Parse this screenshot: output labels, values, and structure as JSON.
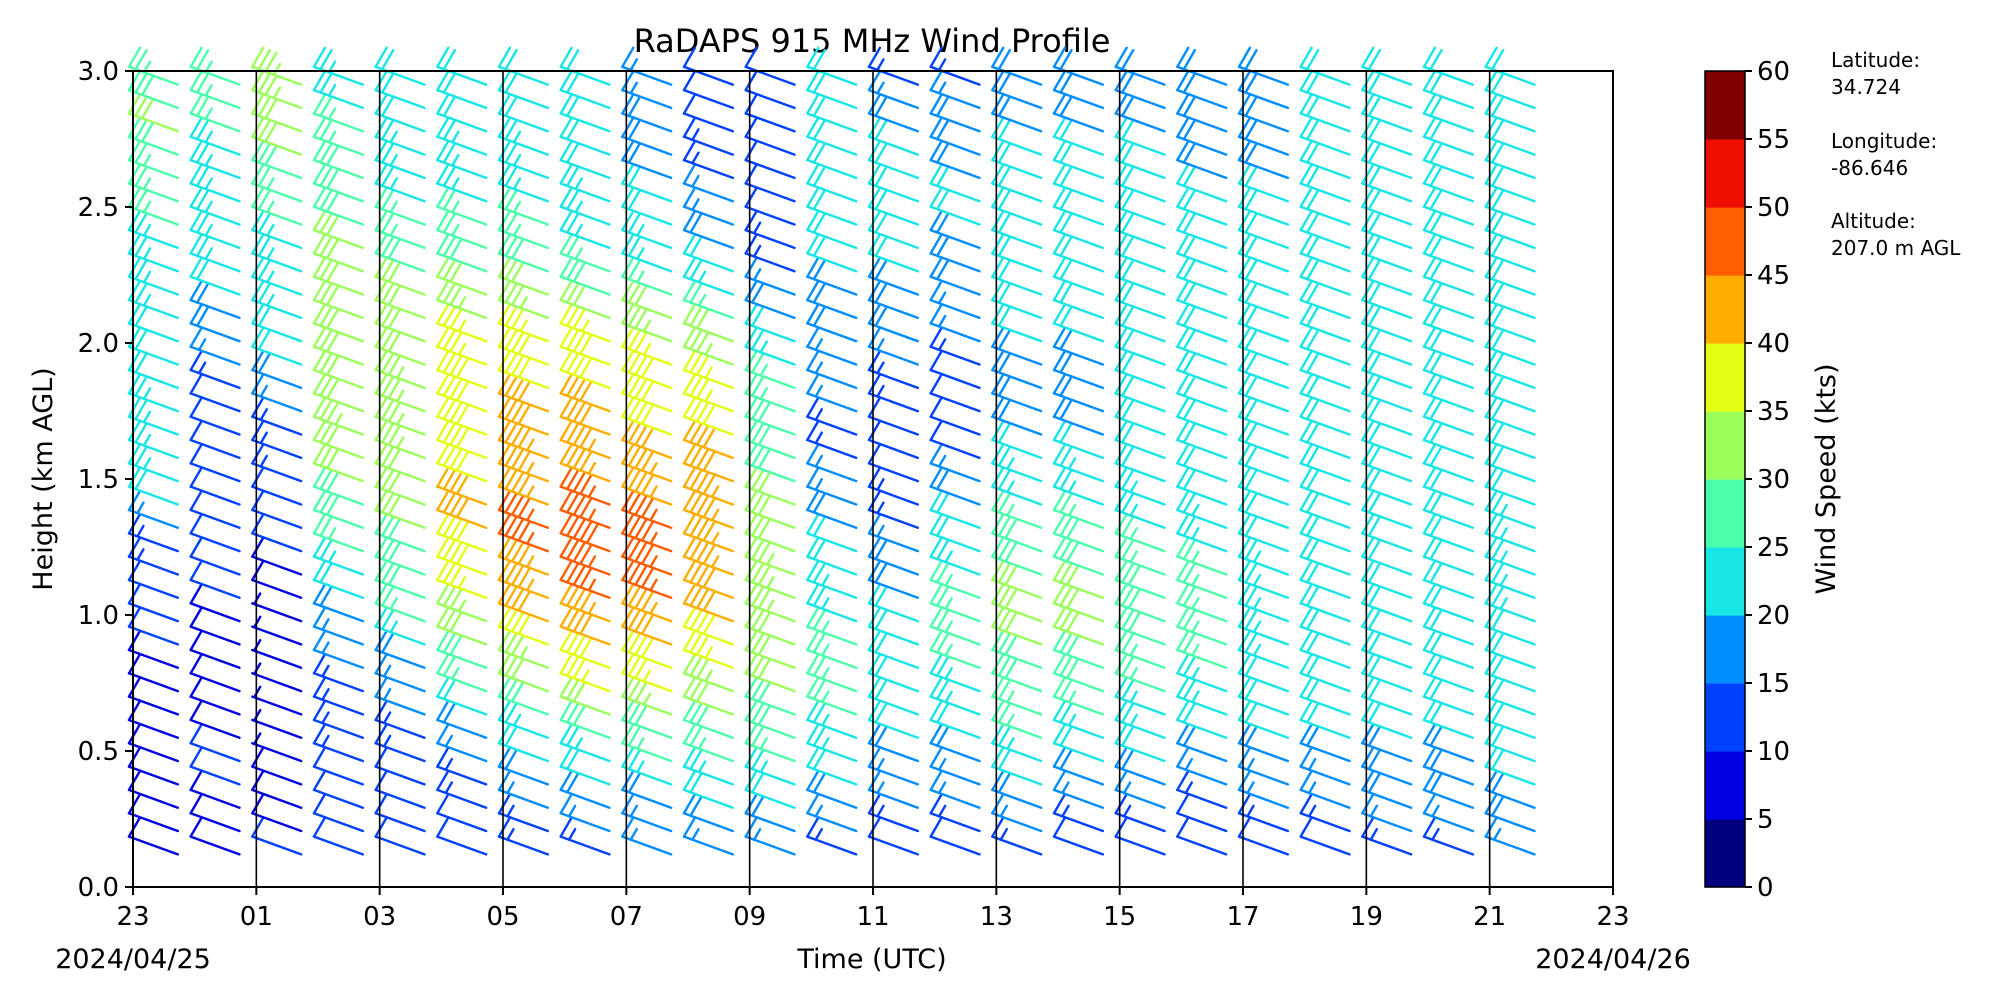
{
  "chart_data": {
    "type": "wind_barbs",
    "title": "RaDAPS 915 MHz Wind Profile",
    "xlabel": "Time (UTC)",
    "ylabel": "Height (km AGL)",
    "x_tick_labels": [
      "23",
      "01",
      "03",
      "05",
      "07",
      "09",
      "11",
      "13",
      "15",
      "17",
      "19",
      "21",
      "23"
    ],
    "x_range_hours": [
      0,
      24
    ],
    "start_date": "2024/04/25",
    "end_date": "2024/04/26",
    "y_ticks": [
      "0.0",
      "0.5",
      "1.0",
      "1.5",
      "2.0",
      "2.5",
      "3.0"
    ],
    "ylim": [
      0,
      3
    ],
    "grid": "vertical lines every 2 hours",
    "colorbar": {
      "label": "Wind Speed (kts)",
      "ticks": [
        "0",
        "5",
        "10",
        "15",
        "20",
        "25",
        "30",
        "35",
        "40",
        "45",
        "50",
        "55",
        "60"
      ],
      "range": [
        0,
        60
      ],
      "colors": [
        "#00007f",
        "#0000e1",
        "#0040ff",
        "#008dff",
        "#18e6e6",
        "#4cffaa",
        "#9bff5b",
        "#e4ff13",
        "#ffae00",
        "#ff5d00",
        "#ee0f00",
        "#7f0000"
      ]
    },
    "station": {
      "latitude_label": "Latitude:",
      "latitude": "34.724",
      "longitude_label": "Longitude:",
      "longitude": "-86.646",
      "altitude_label": "Altitude:",
      "altitude": "207.0 m AGL"
    },
    "profiles": [
      {
        "time_h": 0.5,
        "bottom_km": 0.12,
        "top_km": 2.95,
        "speed_kts": [
          8,
          9,
          10,
          9,
          10,
          12,
          14,
          22,
          24,
          22,
          22,
          24,
          25,
          26,
          32,
          26
        ]
      },
      {
        "time_h": 1.5,
        "bottom_km": 0.12,
        "top_km": 2.95,
        "speed_kts": [
          9,
          10,
          10,
          9,
          9,
          10,
          10,
          10,
          11,
          13,
          18,
          22,
          24,
          24,
          25,
          26
        ]
      },
      {
        "time_h": 2.5,
        "bottom_km": 0.12,
        "top_km": 2.95,
        "speed_kts": [
          10,
          9,
          7,
          5,
          6,
          8,
          11,
          12,
          14,
          18,
          22,
          24,
          25,
          27,
          32,
          34
        ]
      },
      {
        "time_h": 3.5,
        "bottom_km": 0.12,
        "top_km": 2.95,
        "speed_kts": [
          11,
          12,
          13,
          14,
          16,
          20,
          27,
          30,
          33,
          32,
          30,
          30,
          30,
          28,
          26,
          24
        ]
      },
      {
        "time_h": 4.5,
        "bottom_km": 0.12,
        "top_km": 2.95,
        "speed_kts": [
          12,
          12,
          13,
          16,
          22,
          28,
          30,
          32,
          33,
          33,
          32,
          30,
          26,
          24,
          22,
          22
        ]
      },
      {
        "time_h": 5.5,
        "bottom_km": 0.12,
        "top_km": 2.95,
        "speed_kts": [
          12,
          13,
          16,
          24,
          30,
          37,
          40,
          40,
          39,
          38,
          35,
          30,
          26,
          24,
          22,
          22
        ]
      },
      {
        "time_h": 6.5,
        "bottom_km": 0.12,
        "top_km": 2.95,
        "speed_kts": [
          13,
          16,
          22,
          30,
          37,
          44,
          46,
          44,
          42,
          40,
          36,
          30,
          26,
          24,
          22,
          22
        ]
      },
      {
        "time_h": 7.5,
        "bottom_km": 0.12,
        "top_km": 2.95,
        "speed_kts": [
          14,
          18,
          26,
          34,
          40,
          46,
          48,
          46,
          42,
          40,
          36,
          28,
          24,
          22,
          20,
          20
        ]
      },
      {
        "time_h": 8.5,
        "bottom_km": 0.12,
        "top_km": 2.95,
        "speed_kts": [
          15,
          20,
          28,
          35,
          41,
          45,
          46,
          44,
          40,
          38,
          34,
          26,
          22,
          20,
          18,
          16
        ]
      },
      {
        "time_h": 9.5,
        "bottom_km": 0.12,
        "top_km": 2.95,
        "speed_kts": [
          16,
          22,
          28,
          34,
          38,
          42,
          44,
          43,
          40,
          36,
          30,
          22,
          18,
          14,
          12,
          12
        ]
      },
      {
        "time_h": 10.5,
        "bottom_km": 0.12,
        "top_km": 2.95,
        "speed_kts": [
          17,
          22,
          28,
          30,
          32,
          33,
          32,
          30,
          28,
          26,
          22,
          16,
          12,
          10,
          10,
          12
        ]
      },
      {
        "time_h": 11.5,
        "bottom_km": 0.12,
        "top_km": 2.95,
        "speed_kts": [
          14,
          20,
          24,
          26,
          26,
          24,
          20,
          16,
          14,
          16,
          18,
          20,
          22,
          22,
          22,
          22
        ]
      },
      {
        "time_h": 12.5,
        "bottom_km": 0.12,
        "top_km": 2.95,
        "speed_kts": [
          12,
          16,
          20,
          22,
          22,
          20,
          16,
          12,
          12,
          14,
          18,
          20,
          22,
          22,
          20,
          14
        ]
      },
      {
        "time_h": 13.5,
        "bottom_km": 0.12,
        "top_km": 2.95,
        "speed_kts": [
          12,
          16,
          20,
          24,
          26,
          26,
          22,
          18,
          10,
          10,
          16,
          18,
          20,
          20,
          18,
          14
        ]
      },
      {
        "time_h": 14.5,
        "bottom_km": 0.12,
        "top_km": 2.95,
        "speed_kts": [
          13,
          18,
          24,
          28,
          30,
          30,
          28,
          24,
          20,
          18,
          20,
          22,
          22,
          22,
          20,
          18
        ]
      },
      {
        "time_h": 15.5,
        "bottom_km": 0.12,
        "top_km": 2.95,
        "speed_kts": [
          12,
          16,
          22,
          28,
          30,
          30,
          28,
          24,
          20,
          18,
          20,
          22,
          22,
          22,
          20,
          18
        ]
      },
      {
        "time_h": 16.5,
        "bottom_km": 0.12,
        "top_km": 2.95,
        "speed_kts": [
          11,
          16,
          22,
          26,
          28,
          28,
          26,
          22,
          20,
          20,
          22,
          22,
          22,
          22,
          20,
          18
        ]
      },
      {
        "time_h": 17.5,
        "bottom_km": 0.12,
        "top_km": 2.95,
        "speed_kts": [
          10,
          14,
          20,
          24,
          26,
          26,
          24,
          22,
          20,
          20,
          20,
          20,
          20,
          20,
          18,
          18
        ]
      },
      {
        "time_h": 18.5,
        "bottom_km": 0.12,
        "top_km": 2.95,
        "speed_kts": [
          11,
          16,
          20,
          22,
          24,
          24,
          22,
          22,
          20,
          20,
          20,
          20,
          20,
          20,
          18,
          18
        ]
      },
      {
        "time_h": 19.5,
        "bottom_km": 0.12,
        "top_km": 2.95,
        "speed_kts": [
          12,
          16,
          20,
          20,
          20,
          20,
          20,
          20,
          20,
          20,
          20,
          20,
          20,
          20,
          20,
          20
        ]
      },
      {
        "time_h": 20.5,
        "bottom_km": 0.12,
        "top_km": 2.95,
        "speed_kts": [
          13,
          18,
          20,
          20,
          20,
          20,
          20,
          20,
          20,
          20,
          20,
          20,
          20,
          20,
          20,
          20
        ]
      },
      {
        "time_h": 21.5,
        "bottom_km": 0.12,
        "top_km": 2.95,
        "speed_kts": [
          14,
          18,
          20,
          20,
          20,
          22,
          22,
          22,
          20,
          20,
          20,
          20,
          20,
          20,
          20,
          20
        ]
      },
      {
        "time_h": 22.5,
        "bottom_km": 0.12,
        "top_km": 2.95,
        "speed_kts": [
          16,
          20,
          22,
          22,
          22,
          24,
          24,
          22,
          22,
          22,
          22,
          22,
          22,
          22,
          22,
          22
        ]
      }
    ]
  }
}
